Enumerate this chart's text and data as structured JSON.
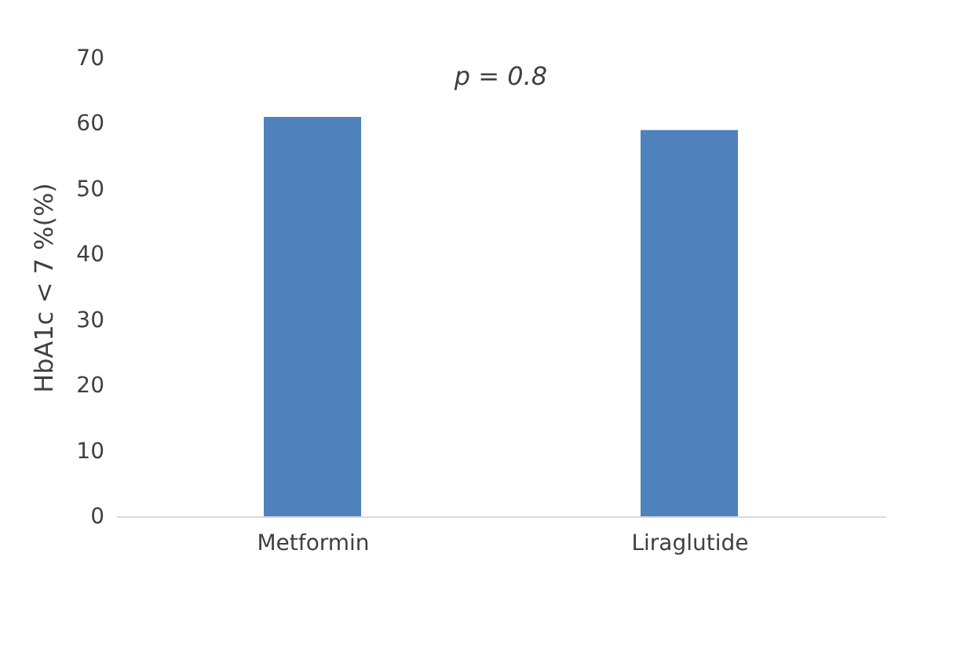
{
  "chart_data": {
    "type": "bar",
    "ylabel": "HbA1c < 7 %(%)",
    "categories": [
      "Metformin",
      "Liraglutide"
    ],
    "series": [
      {
        "color": "#4f81bd",
        "values": [
          61,
          59
        ]
      }
    ],
    "ylim": [
      0,
      70
    ],
    "yticks": [
      0,
      10,
      20,
      30,
      40,
      50,
      60,
      70
    ],
    "annotations": [
      "p = 0.8"
    ],
    "grid": false
  }
}
